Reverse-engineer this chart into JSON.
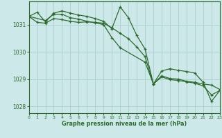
{
  "title": "Graphe pression niveau de la mer (hPa)",
  "background_color": "#cce8e8",
  "grid_color": "#aad0d0",
  "line_color": "#2d6b2d",
  "xlim": [
    0,
    23
  ],
  "ylim": [
    1027.75,
    1031.85
  ],
  "yticks": [
    1028,
    1029,
    1030,
    1031
  ],
  "xticks": [
    0,
    1,
    2,
    3,
    4,
    5,
    6,
    7,
    8,
    9,
    10,
    11,
    12,
    13,
    14,
    15,
    16,
    17,
    18,
    19,
    20,
    21,
    22,
    23
  ],
  "series": [
    {
      "x": [
        0,
        1,
        2,
        3,
        4,
        5,
        6,
        7,
        8,
        9,
        10,
        11,
        12,
        13,
        14,
        15,
        16,
        17,
        18,
        19,
        20,
        21,
        22,
        23
      ],
      "y": [
        1031.3,
        1031.45,
        1031.1,
        1031.42,
        1031.5,
        1031.42,
        1031.35,
        1031.3,
        1031.22,
        1031.12,
        1030.85,
        1031.65,
        1031.25,
        1030.6,
        1030.1,
        1028.82,
        1029.12,
        1029.02,
        1029.0,
        1028.92,
        1028.88,
        1028.82,
        1028.78,
        1028.62
      ]
    },
    {
      "x": [
        0,
        1,
        2,
        3,
        4,
        5,
        6,
        7,
        8,
        9,
        10,
        11,
        12,
        13,
        14,
        15,
        16,
        17,
        18,
        19,
        20,
        21,
        22,
        23
      ],
      "y": [
        1031.3,
        1031.08,
        1031.05,
        1031.22,
        1031.18,
        1031.12,
        1031.08,
        1031.1,
        1031.08,
        1031.05,
        1030.88,
        1030.68,
        1030.48,
        1030.18,
        1029.82,
        1028.82,
        1029.08,
        1028.98,
        1028.95,
        1028.9,
        1028.85,
        1028.75,
        1028.42,
        1028.58
      ]
    },
    {
      "x": [
        0,
        2,
        3,
        4,
        5,
        6,
        7,
        8,
        9,
        10,
        11,
        14,
        15,
        16,
        17,
        18,
        19,
        20,
        21,
        22,
        23
      ],
      "y": [
        1031.3,
        1031.15,
        1031.38,
        1031.38,
        1031.25,
        1031.2,
        1031.12,
        1031.06,
        1031.0,
        1030.52,
        1030.15,
        1029.62,
        1028.82,
        1029.3,
        1029.38,
        1029.32,
        1029.28,
        1029.22,
        1028.88,
        1028.18,
        1028.58
      ]
    }
  ]
}
